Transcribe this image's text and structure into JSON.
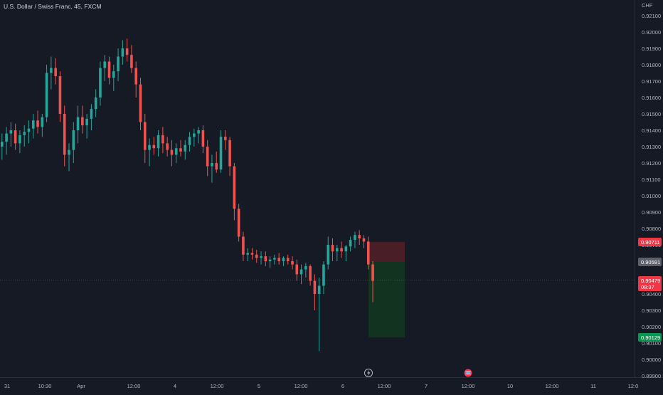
{
  "header": {
    "symbol_title": "U.S. Dollar / Swiss Franc, 45, FXCM"
  },
  "price_axis": {
    "currency": "CHF",
    "ticks": [
      "0.92100",
      "0.92000",
      "0.91900",
      "0.91800",
      "0.91700",
      "0.91600",
      "0.91500",
      "0.91400",
      "0.91300",
      "0.91200",
      "0.91100",
      "0.91000",
      "0.90900",
      "0.90800",
      "0.90700",
      "0.90600",
      "0.90500",
      "0.90400",
      "0.90300",
      "0.90200",
      "0.90100",
      "0.90000",
      "0.89900"
    ]
  },
  "time_axis": {
    "labels": [
      "31",
      "10:30",
      "Apr",
      "12:00",
      "4",
      "12:00",
      "5",
      "12:00",
      "6",
      "12:00",
      "7",
      "12:00",
      "10",
      "12:00",
      "11",
      "12:0"
    ]
  },
  "markers": {
    "stop_label": "0.90711",
    "entry_label": "0.90591",
    "current_price_label": "0.90479",
    "countdown_label": "08:37",
    "target_label": "0.90129"
  },
  "colors": {
    "background": "#161a25",
    "up": "#26a69a",
    "down": "#ef5350",
    "stop_zone": "#4a1e26",
    "target_zone": "#11331f",
    "stop_tag": "#f23645",
    "entry_tag": "#5d606b",
    "target_tag": "#089950"
  },
  "chart_data": {
    "type": "candlestick",
    "title": "U.S. Dollar / Swiss Franc, 45, FXCM",
    "symbol": "USDCHF",
    "timeframe": "45",
    "y_axis_unit": "CHF",
    "ylim": [
      0.8985,
      0.9216
    ],
    "grid": false,
    "candles": [
      [
        0.913,
        0.9138,
        0.9122,
        0.9133
      ],
      [
        0.9133,
        0.9142,
        0.9125,
        0.9138
      ],
      [
        0.9138,
        0.9145,
        0.913,
        0.914
      ],
      [
        0.914,
        0.9144,
        0.9128,
        0.9132
      ],
      [
        0.9132,
        0.914,
        0.9126,
        0.9137
      ],
      [
        0.9137,
        0.9143,
        0.913,
        0.9139
      ],
      [
        0.9139,
        0.9146,
        0.9132,
        0.9141
      ],
      [
        0.9141,
        0.915,
        0.9135,
        0.9146
      ],
      [
        0.9146,
        0.9152,
        0.9138,
        0.9142
      ],
      [
        0.9142,
        0.915,
        0.9136,
        0.9148
      ],
      [
        0.9148,
        0.918,
        0.9145,
        0.9175
      ],
      [
        0.9175,
        0.9185,
        0.9165,
        0.9178
      ],
      [
        0.9178,
        0.9184,
        0.9168,
        0.9173
      ],
      [
        0.9173,
        0.9176,
        0.9145,
        0.915
      ],
      [
        0.915,
        0.9155,
        0.9118,
        0.9125
      ],
      [
        0.9125,
        0.9132,
        0.9115,
        0.9128
      ],
      [
        0.9128,
        0.9145,
        0.912,
        0.914
      ],
      [
        0.914,
        0.9155,
        0.9132,
        0.9148
      ],
      [
        0.9148,
        0.9155,
        0.9138,
        0.9143
      ],
      [
        0.9143,
        0.915,
        0.9135,
        0.9147
      ],
      [
        0.9147,
        0.9156,
        0.914,
        0.9153
      ],
      [
        0.9153,
        0.9165,
        0.9148,
        0.916
      ],
      [
        0.916,
        0.9182,
        0.9155,
        0.9178
      ],
      [
        0.9178,
        0.9186,
        0.917,
        0.9182
      ],
      [
        0.9182,
        0.9185,
        0.9168,
        0.9172
      ],
      [
        0.9172,
        0.918,
        0.9164,
        0.9176
      ],
      [
        0.9176,
        0.919,
        0.917,
        0.9185
      ],
      [
        0.9185,
        0.9195,
        0.918,
        0.919
      ],
      [
        0.919,
        0.9196,
        0.9182,
        0.9186
      ],
      [
        0.9186,
        0.9192,
        0.9175,
        0.9178
      ],
      [
        0.9178,
        0.9182,
        0.916,
        0.9168
      ],
      [
        0.9168,
        0.9172,
        0.914,
        0.9145
      ],
      [
        0.9145,
        0.915,
        0.912,
        0.9128
      ],
      [
        0.9128,
        0.9135,
        0.9118,
        0.9131
      ],
      [
        0.9131,
        0.9136,
        0.9125,
        0.9129
      ],
      [
        0.9129,
        0.914,
        0.9124,
        0.9137
      ],
      [
        0.9137,
        0.9142,
        0.9126,
        0.9132
      ],
      [
        0.9132,
        0.9136,
        0.9124,
        0.9128
      ],
      [
        0.9128,
        0.9134,
        0.9118,
        0.9125
      ],
      [
        0.9125,
        0.9132,
        0.912,
        0.9129
      ],
      [
        0.9129,
        0.9134,
        0.9124,
        0.9127
      ],
      [
        0.9127,
        0.9134,
        0.9122,
        0.9131
      ],
      [
        0.9131,
        0.9139,
        0.9127,
        0.9136
      ],
      [
        0.9136,
        0.9141,
        0.913,
        0.9138
      ],
      [
        0.9138,
        0.9142,
        0.9132,
        0.914
      ],
      [
        0.914,
        0.9143,
        0.9126,
        0.913
      ],
      [
        0.913,
        0.9134,
        0.9112,
        0.9118
      ],
      [
        0.9118,
        0.9125,
        0.9108,
        0.912
      ],
      [
        0.912,
        0.9127,
        0.9114,
        0.9116
      ],
      [
        0.9116,
        0.914,
        0.9114,
        0.9136
      ],
      [
        0.9136,
        0.914,
        0.9128,
        0.9134
      ],
      [
        0.9134,
        0.9136,
        0.9112,
        0.9118
      ],
      [
        0.9118,
        0.912,
        0.9085,
        0.9092
      ],
      [
        0.9092,
        0.9095,
        0.9072,
        0.9075
      ],
      [
        0.9075,
        0.9078,
        0.906,
        0.9064
      ],
      [
        0.9064,
        0.9068,
        0.906,
        0.9065
      ],
      [
        0.9065,
        0.9068,
        0.9061,
        0.9064
      ],
      [
        0.9064,
        0.9067,
        0.9059,
        0.9062
      ],
      [
        0.9062,
        0.9066,
        0.9058,
        0.9063
      ],
      [
        0.9063,
        0.9066,
        0.9057,
        0.906
      ],
      [
        0.906,
        0.9063,
        0.9056,
        0.9061
      ],
      [
        0.9061,
        0.9064,
        0.9058,
        0.9062
      ],
      [
        0.9062,
        0.9065,
        0.9058,
        0.906
      ],
      [
        0.906,
        0.9063,
        0.9057,
        0.9062
      ],
      [
        0.9062,
        0.9064,
        0.9058,
        0.906
      ],
      [
        0.906,
        0.9063,
        0.9055,
        0.9058
      ],
      [
        0.9058,
        0.9061,
        0.9048,
        0.9052
      ],
      [
        0.9052,
        0.9058,
        0.9046,
        0.9055
      ],
      [
        0.9055,
        0.9059,
        0.905,
        0.9057
      ],
      [
        0.9057,
        0.9058,
        0.9045,
        0.9048
      ],
      [
        0.9048,
        0.9052,
        0.903,
        0.904
      ],
      [
        0.904,
        0.905,
        0.9005,
        0.9045
      ],
      [
        0.9045,
        0.906,
        0.904,
        0.9058
      ],
      [
        0.9058,
        0.9075,
        0.9055,
        0.907
      ],
      [
        0.907,
        0.9074,
        0.906,
        0.9066
      ],
      [
        0.9066,
        0.907,
        0.906,
        0.9068
      ],
      [
        0.9068,
        0.9072,
        0.9062,
        0.9066
      ],
      [
        0.9066,
        0.907,
        0.906,
        0.9069
      ],
      [
        0.9069,
        0.9075,
        0.9066,
        0.9073
      ],
      [
        0.9073,
        0.9078,
        0.9068,
        0.9076
      ],
      [
        0.9076,
        0.9079,
        0.907,
        0.9074
      ],
      [
        0.9074,
        0.9076,
        0.9068,
        0.9072
      ],
      [
        0.9072,
        0.9075,
        0.9055,
        0.9058
      ],
      [
        0.9058,
        0.906,
        0.9035,
        0.9048
      ]
    ],
    "annotations": {
      "current_price": 0.90479,
      "countdown": "08:37",
      "position": {
        "side": "short",
        "entry": 0.90591,
        "stop": 0.90711,
        "target": 0.90129
      },
      "event_markers": [
        "flash-event-icon",
        "flag-event-icon"
      ]
    }
  }
}
